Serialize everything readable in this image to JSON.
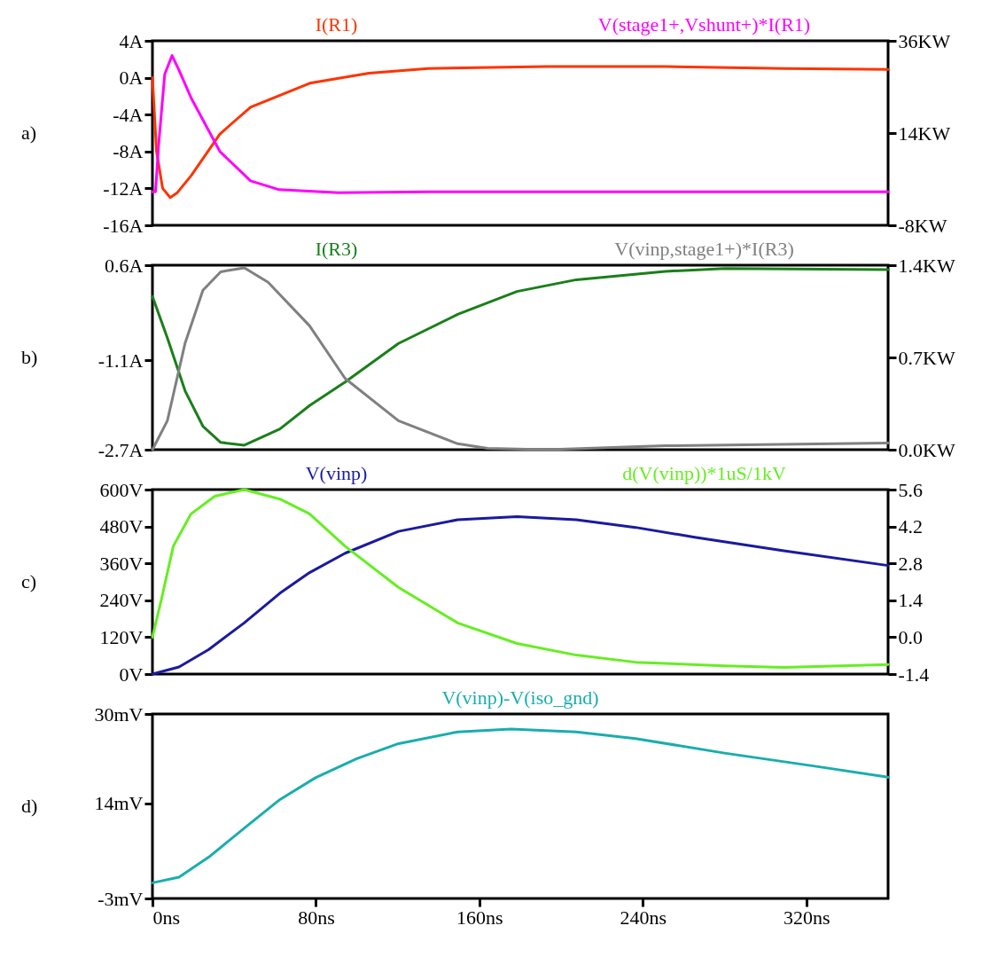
{
  "chart_data": [
    {
      "type": "line",
      "annotations": [
        "a)"
      ],
      "tick_labels": "y",
      "xlim": [
        0,
        360
      ],
      "ylim": [
        -16,
        4
      ],
      "yticks": [
        {
          "value": 4,
          "label": "4A"
        },
        {
          "value": 0,
          "label": "0A"
        },
        {
          "value": -4,
          "label": "-4A"
        },
        {
          "value": -8,
          "label": "-8A"
        },
        {
          "value": -12,
          "label": "-12A"
        },
        {
          "value": -16,
          "label": "-16A"
        }
      ],
      "y2lim": [
        -8,
        36
      ],
      "y2ticks": [
        {
          "value": 36,
          "label": "36KW"
        },
        {
          "value": 14,
          "label": "14KW"
        },
        {
          "value": -8,
          "label": "-8KW"
        }
      ],
      "series": [
        {
          "name": "I(R1)",
          "color": "#ff3300",
          "x": [
            0,
            2,
            5,
            8.7,
            12,
            19,
            33,
            48,
            77,
            106,
            135,
            193,
            251,
            309,
            360
          ],
          "values": [
            0,
            -8,
            -12,
            -13,
            -12.5,
            -10.6,
            -6.1,
            -3.2,
            -0.6,
            0.5,
            1.0,
            1.2,
            1.2,
            1.0,
            0.9
          ]
        },
        {
          "name": "V(stage1+,Vshunt+)*I(R1)",
          "color": "#ff00ff",
          "axis": "y2",
          "x": [
            0,
            1.5,
            3,
            6,
            9.6,
            13,
            19,
            33,
            48,
            62,
            91,
            135,
            250,
            360
          ],
          "values": [
            0,
            0,
            11,
            28,
            32.5,
            29,
            22.3,
            9.6,
            2.6,
            0.5,
            -0.2,
            0,
            0,
            0
          ]
        }
      ]
    },
    {
      "type": "line",
      "annotations": [
        "b)"
      ],
      "tick_labels": "y",
      "xlim": [
        0,
        360
      ],
      "ylim": [
        -2.7,
        0.6
      ],
      "yticks": [
        {
          "value": 0.6,
          "label": "0.6A"
        },
        {
          "value": -1.1,
          "label": "-1.1A"
        },
        {
          "value": -2.7,
          "label": "-2.7A"
        }
      ],
      "y2lim": [
        0,
        1.4
      ],
      "y2ticks": [
        {
          "value": 1.4,
          "label": "1.4KW"
        },
        {
          "value": 0.7,
          "label": "0.7KW"
        },
        {
          "value": 0,
          "label": "0.0KW"
        }
      ],
      "series": [
        {
          "name": "I(R3)",
          "color": "#1a7f1a",
          "x": [
            0,
            7.3,
            16,
            24.7,
            33.4,
            45,
            62.4,
            76.9,
            94.3,
            120.4,
            149.4,
            178.4,
            207.4,
            251,
            280,
            360
          ],
          "values": [
            0.04,
            -0.7,
            -1.65,
            -2.28,
            -2.57,
            -2.62,
            -2.33,
            -1.91,
            -1.49,
            -0.8,
            -0.28,
            0.13,
            0.34,
            0.49,
            0.54,
            0.52
          ]
        },
        {
          "name": "V(vinp,stage1+)*I(R3)",
          "color": "#808080",
          "axis": "y2",
          "x": [
            0,
            7.3,
            16,
            24.7,
            33.4,
            45,
            56.6,
            76.9,
            94.3,
            120.4,
            149.4,
            164,
            193,
            251,
            360
          ],
          "values": [
            0,
            0.22,
            0.81,
            1.21,
            1.35,
            1.38,
            1.27,
            0.94,
            0.54,
            0.22,
            0.045,
            0.01,
            0,
            0.03,
            0.05
          ]
        }
      ]
    },
    {
      "type": "line",
      "annotations": [
        "c)"
      ],
      "tick_labels": "y",
      "xlim": [
        0,
        360
      ],
      "ylim": [
        0,
        600
      ],
      "yticks": [
        {
          "value": 0,
          "label": "0V"
        },
        {
          "value": 120,
          "label": "120V"
        },
        {
          "value": 240,
          "label": "240V"
        },
        {
          "value": 360,
          "label": "360V"
        },
        {
          "value": 480,
          "label": "480V"
        },
        {
          "value": 600,
          "label": "600V"
        }
      ],
      "y2lim": [
        -1.4,
        5.6
      ],
      "y2ticks": [
        -1.4,
        {
          "value": 0,
          "label": "0.0"
        },
        1.4,
        2.8,
        4.2,
        5.6
      ],
      "series": [
        {
          "name": "V(vinp)",
          "color": "#1a1aa0",
          "x": [
            0,
            13,
            27.6,
            45,
            62.4,
            76.9,
            94.3,
            120.4,
            149.4,
            178.4,
            207.4,
            236.4,
            265.4,
            309,
            360
          ],
          "values": [
            0,
            23,
            80,
            167,
            263,
            330,
            393,
            464,
            502,
            512,
            502,
            477,
            445,
            401,
            353
          ]
        },
        {
          "name": "d(V(vinp))*1uS/1kV",
          "color": "#66ee22",
          "axis": "y2",
          "x": [
            0,
            4.4,
            10.2,
            18.9,
            30.5,
            45,
            62.4,
            76.9,
            94.3,
            120.4,
            149.4,
            178.4,
            207.4,
            236.4,
            280,
            309,
            360
          ],
          "values": [
            0,
            1.44,
            3.45,
            4.68,
            5.35,
            5.6,
            5.24,
            4.68,
            3.45,
            1.89,
            0.54,
            -0.24,
            -0.68,
            -0.95,
            -1.09,
            -1.15,
            -1.04
          ]
        }
      ]
    },
    {
      "type": "line",
      "annotations": [
        "d)"
      ],
      "xlim": [
        0,
        360
      ],
      "xticks": [
        {
          "value": 0,
          "label": "0ns"
        },
        {
          "value": 80,
          "label": "80ns"
        },
        {
          "value": 160,
          "label": "160ns"
        },
        {
          "value": 240,
          "label": "240ns"
        },
        {
          "value": 320,
          "label": "320ns"
        }
      ],
      "ylim": [
        -3,
        30
      ],
      "yticks": [
        {
          "value": -3,
          "label": "-3mV"
        },
        {
          "value": 14,
          "label": "14mV"
        },
        {
          "value": 30,
          "label": "30mV"
        }
      ],
      "series": [
        {
          "name": "V(vinp)-V(iso_gnd)",
          "color": "#1aadad",
          "x": [
            0,
            13,
            27.6,
            45,
            62.4,
            79.8,
            100,
            120.4,
            149.4,
            175.5,
            207.4,
            236.4,
            280,
            323.5,
            360
          ],
          "values": [
            -0.2,
            0.8,
            4.4,
            9.6,
            14.7,
            18.6,
            22,
            24.7,
            26.8,
            27.3,
            26.8,
            25.6,
            23,
            20.7,
            18.7
          ]
        }
      ]
    }
  ]
}
